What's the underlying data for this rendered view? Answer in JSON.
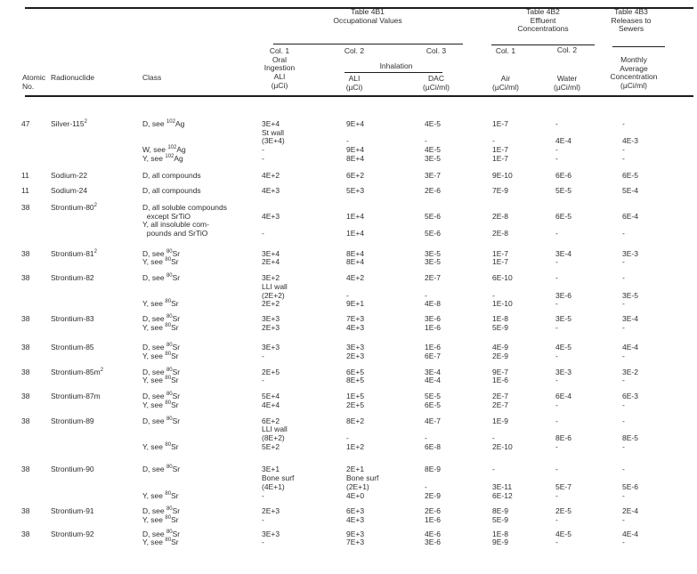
{
  "header": {
    "table1": {
      "line1": "Table 4B1",
      "line2": "Occupational Values"
    },
    "table2": {
      "line1": "Table 4B2",
      "line2": "Effluent",
      "line3": "Concentrations"
    },
    "table3": {
      "line1": "Table 4B3",
      "line2": "Releases to",
      "line3": "Sewers"
    },
    "atomic": {
      "line1": "Atomic",
      "line2": "No."
    },
    "radionuclide": "Radionuclide",
    "class_label": "Class",
    "oral": {
      "col": "Col. 1",
      "l1": "Oral",
      "l2": "Ingestion",
      "l3": "ALI",
      "l4": "(µCi)"
    },
    "col2": "Col. 2",
    "col3": "Col. 3",
    "inhalation": "Inhalation",
    "inhal_ali": {
      "l1": "ALI",
      "l2": "(µCi)"
    },
    "dac": {
      "l1": "DAC",
      "l2": "(µCi/ml)"
    },
    "eff_col1": "Col. 1",
    "eff_col2": "Col. 2",
    "air": {
      "l1": "Air",
      "l2": "(µCi/ml)"
    },
    "water": {
      "l1": "Water",
      "l2": "(µCi/ml)"
    },
    "monthly": {
      "l1": "Monthly",
      "l2": "Average",
      "l3": "Concentration",
      "l4": "(µCi/ml)"
    }
  },
  "rows": [
    {
      "atomic": "47",
      "nuclide": "Silver-115^2^",
      "gap": 0,
      "lines": [
        [
          "D, see ^102^Ag",
          "3E+4",
          "9E+4",
          "4E-5",
          "1E-7",
          "-",
          "-"
        ],
        [
          "",
          "St wall",
          "",
          "",
          "",
          "",
          ""
        ],
        [
          "",
          "(3E+4)",
          "-",
          "-",
          "-",
          "4E-4",
          "4E-3"
        ],
        [
          "W, see ^102^Ag",
          "-",
          "9E+4",
          "4E-5",
          "1E-7",
          "-",
          "-"
        ],
        [
          "Y, see ^102^Ag",
          "-",
          "8E+4",
          "3E-5",
          "1E-7",
          "-",
          "-"
        ]
      ]
    },
    {
      "atomic": "11",
      "nuclide": "Sodium-22",
      "gap": 9,
      "lines": [
        [
          "D, all compounds",
          "4E+2",
          "6E+2",
          "3E-7",
          "9E-10",
          "6E-6",
          "6E-5"
        ]
      ]
    },
    {
      "atomic": "11",
      "nuclide": "Sodium-24",
      "gap": 8,
      "lines": [
        [
          "D, all compounds",
          "4E+3",
          "5E+3",
          "2E-6",
          "7E-9",
          "5E-5",
          "5E-4"
        ]
      ]
    },
    {
      "atomic": "38",
      "nuclide": "Strontium-80^2^",
      "gap": 9,
      "lines": [
        [
          "D, all soluble compounds",
          "",
          "",
          "",
          "",
          "",
          ""
        ],
        [
          "  except SrTiO",
          "4E+3",
          "1E+4",
          "5E-6",
          "2E-8",
          "6E-5",
          "6E-4"
        ],
        [
          "Y, all insoluble com-",
          "",
          "",
          "",
          "",
          "",
          ""
        ],
        [
          "  pounds and SrTiO",
          "-",
          "1E+4",
          "5E-6",
          "2E-8",
          "-",
          "-"
        ]
      ]
    },
    {
      "atomic": "38",
      "nuclide": "Strontium-81^2^",
      "gap": 13,
      "lines": [
        [
          "D, see ^80^Sr",
          "3E+4",
          "8E+4",
          "3E-5",
          "1E-7",
          "3E-4",
          "3E-3"
        ],
        [
          "Y, see ^80^Sr",
          "2E+4",
          "8E+4",
          "3E-5",
          "1E-7",
          "-",
          "-"
        ]
      ]
    },
    {
      "atomic": "38",
      "nuclide": "Strontium-82",
      "gap": 8,
      "lines": [
        [
          "D, see ^80^Sr",
          "3E+2",
          "4E+2",
          "2E-7",
          "6E-10",
          "-",
          "-"
        ],
        [
          "",
          "LLI wall",
          "",
          "",
          "",
          "",
          ""
        ],
        [
          "",
          "(2E+2)",
          "-",
          "-",
          "-",
          "3E-6",
          "3E-5"
        ],
        [
          "Y, see ^80^Sr",
          "2E+2",
          "9E+1",
          "4E-8",
          "1E-10",
          "-",
          "-"
        ]
      ]
    },
    {
      "atomic": "38",
      "nuclide": "Strontium-83",
      "gap": 7,
      "lines": [
        [
          "D, see ^80^Sr",
          "3E+3",
          "7E+3",
          "3E-6",
          "1E-8",
          "3E-5",
          "3E-4"
        ],
        [
          "Y, see ^80^Sr",
          "2E+3",
          "4E+3",
          "1E-6",
          "5E-9",
          "-",
          "-"
        ]
      ]
    },
    {
      "atomic": "38",
      "nuclide": "Strontium-85",
      "gap": 13,
      "lines": [
        [
          "D, see ^80^Sr",
          "3E+3",
          "3E+3",
          "1E-6",
          "4E-9",
          "4E-5",
          "4E-4"
        ],
        [
          "Y, see ^80^Sr",
          "-",
          "2E+3",
          "6E-7",
          "2E-9",
          "-",
          "-"
        ]
      ]
    },
    {
      "atomic": "38",
      "nuclide": "Strontium-85m^2^",
      "gap": 8,
      "lines": [
        [
          "D, see ^80^Sr",
          "2E+5",
          "6E+5",
          "3E-4",
          "9E-7",
          "3E-3",
          "3E-2"
        ],
        [
          "Y, see ^80^Sr",
          "-",
          "8E+5",
          "4E-4",
          "1E-6",
          "-",
          "-"
        ]
      ]
    },
    {
      "atomic": "38",
      "nuclide": "Strontium-87m",
      "gap": 8,
      "lines": [
        [
          "D, see ^80^Sr",
          "5E+4",
          "1E+5",
          "5E-5",
          "2E-7",
          "6E-4",
          "6E-3"
        ],
        [
          "Y, see ^80^Sr",
          "4E+4",
          "2E+5",
          "6E-5",
          "2E-7",
          "-",
          "-"
        ]
      ]
    },
    {
      "atomic": "38",
      "nuclide": "Strontium-89",
      "gap": 8,
      "lines": [
        [
          "D, see ^80^Sr",
          "6E+2",
          "8E+2",
          "4E-7",
          "1E-9",
          "-",
          "-"
        ],
        [
          "",
          "LLI wall",
          "",
          "",
          "",
          "",
          ""
        ],
        [
          "",
          "(8E+2)",
          "-",
          "-",
          "-",
          "8E-6",
          "8E-5"
        ],
        [
          "Y, see ^80^Sr",
          "5E+2",
          "1E+2",
          "6E-8",
          "2E-10",
          "-",
          "-"
        ]
      ]
    },
    {
      "atomic": "38",
      "nuclide": "Strontium-90",
      "gap": 16,
      "lines": [
        [
          "D, see ^80^Sr",
          "3E+1",
          "2E+1",
          "8E-9",
          "-",
          "-",
          "-"
        ],
        [
          "",
          "Bone surf",
          "Bone surf",
          "",
          "",
          "",
          ""
        ],
        [
          "",
          "(4E+1)",
          "(2E+1)",
          "-",
          "3E-11",
          "5E-7",
          "5E-6"
        ],
        [
          "Y, see ^80^Sr",
          "-",
          "4E+0",
          "2E-9",
          "6E-12",
          "-",
          "-"
        ]
      ]
    },
    {
      "atomic": "38",
      "nuclide": "Strontium-91",
      "gap": 8,
      "lines": [
        [
          "D, see ^80^Sr",
          "2E+3",
          "6E+3",
          "2E-6",
          "8E-9",
          "2E-5",
          "2E-4"
        ],
        [
          "Y, see ^80^Sr",
          "-",
          "4E+3",
          "1E-6",
          "5E-9",
          "-",
          "-"
        ]
      ]
    },
    {
      "atomic": "38",
      "nuclide": "Strontium-92",
      "gap": 6,
      "lines": [
        [
          "D, see ^80^Sr",
          "3E+3",
          "9E+3",
          "4E-6",
          "1E-8",
          "4E-5",
          "4E-4"
        ],
        [
          "Y, see ^80^Sr",
          "-",
          "7E+3",
          "3E-6",
          "9E-9",
          "-",
          "-"
        ]
      ]
    }
  ]
}
